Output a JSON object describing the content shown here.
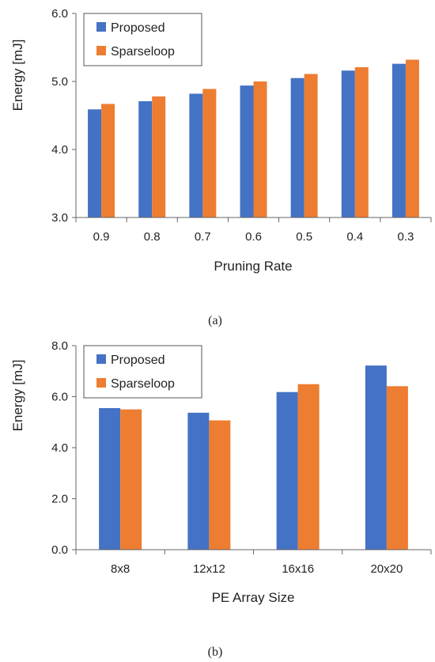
{
  "chart_data": [
    {
      "type": "bar",
      "xlabel": "Pruning Rate",
      "ylabel": "Energy [mJ]",
      "categories": [
        "0.9",
        "0.8",
        "0.7",
        "0.6",
        "0.5",
        "0.4",
        "0.3"
      ],
      "ylim": [
        3.0,
        6.0
      ],
      "yticks": [
        "3.0",
        "4.0",
        "5.0",
        "6.0"
      ],
      "grid": false,
      "legend_position": "top-left",
      "series": [
        {
          "name": "Proposed",
          "color": "#4472C4",
          "values": [
            4.59,
            4.71,
            4.82,
            4.94,
            5.05,
            5.16,
            5.26
          ]
        },
        {
          "name": "Sparseloop",
          "color": "#ED7D31",
          "values": [
            4.67,
            4.78,
            4.89,
            5.0,
            5.11,
            5.21,
            5.32
          ]
        }
      ],
      "caption": "(a)"
    },
    {
      "type": "bar",
      "xlabel": "PE Array Size",
      "ylabel": "Energy [mJ]",
      "categories": [
        "8x8",
        "12x12",
        "16x16",
        "20x20"
      ],
      "ylim": [
        0.0,
        8.0
      ],
      "yticks": [
        "0.0",
        "2.0",
        "4.0",
        "6.0",
        "8.0"
      ],
      "grid": false,
      "legend_position": "top-left",
      "series": [
        {
          "name": "Proposed",
          "color": "#4472C4",
          "values": [
            5.55,
            5.37,
            6.18,
            7.22
          ]
        },
        {
          "name": "Sparseloop",
          "color": "#ED7D31",
          "values": [
            5.5,
            5.07,
            6.49,
            6.41
          ]
        }
      ],
      "caption": "(b)"
    }
  ]
}
